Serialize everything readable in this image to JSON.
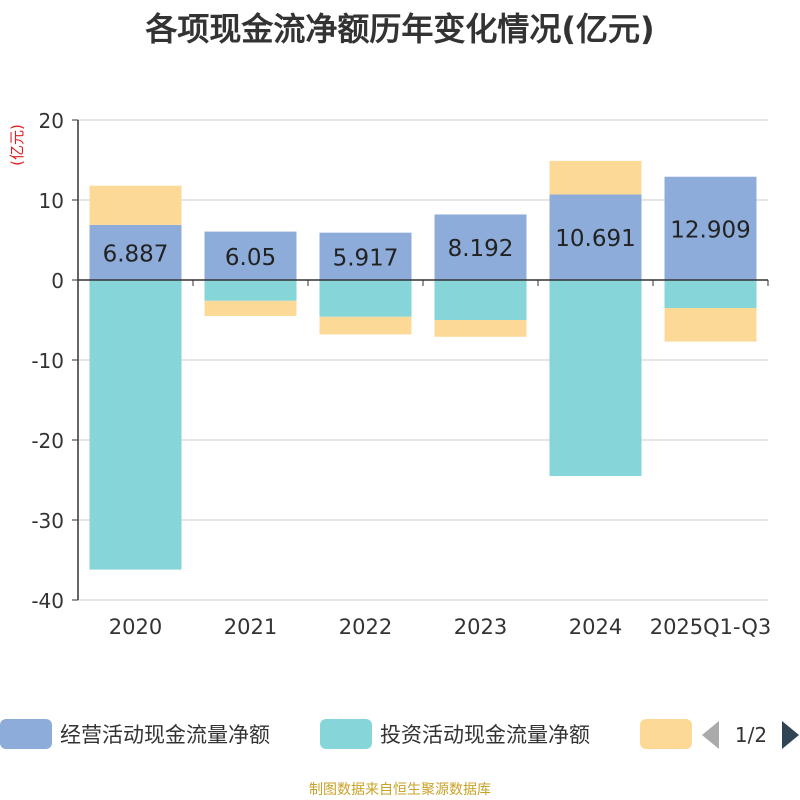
{
  "title": "各项现金流净额历年变化情况(亿元)",
  "footer": "制图数据来自恒生聚源数据库",
  "chart_data": {
    "type": "bar",
    "stacked": true,
    "title": "各项现金流净额历年变化情况(亿元)",
    "ylabel": "(亿元)",
    "ylim": [
      -40,
      20
    ],
    "yticks": [
      20,
      10,
      0,
      -10,
      -20,
      -30,
      -40
    ],
    "categories": [
      "2020",
      "2021",
      "2022",
      "2023",
      "2024",
      "2025Q1-Q3"
    ],
    "series": [
      {
        "name": "经营活动现金流量净额",
        "color": "#8eacd9",
        "values": [
          6.887,
          6.05,
          5.917,
          8.192,
          10.691,
          12.909
        ],
        "labels": [
          "6.887",
          "6.05",
          "5.917",
          "8.192",
          "10.691",
          "12.909"
        ]
      },
      {
        "name": "投资活动现金流量净额",
        "color": "#86d5d8",
        "values": [
          -36.2,
          -2.6,
          -4.6,
          -5.0,
          -24.5,
          -3.5
        ]
      },
      {
        "name": "",
        "color": "#fdd998",
        "values": [
          4.9,
          -1.9,
          -2.2,
          -2.1,
          4.2,
          -4.2
        ]
      }
    ],
    "legend": {
      "position": "bottom",
      "page": "1/2"
    }
  },
  "colors": {
    "axis": "#333333",
    "grid": "#cccccc",
    "ylabel": "#e02020",
    "pager_active": "#2f4554",
    "pager_inactive": "#aaaaaa"
  }
}
